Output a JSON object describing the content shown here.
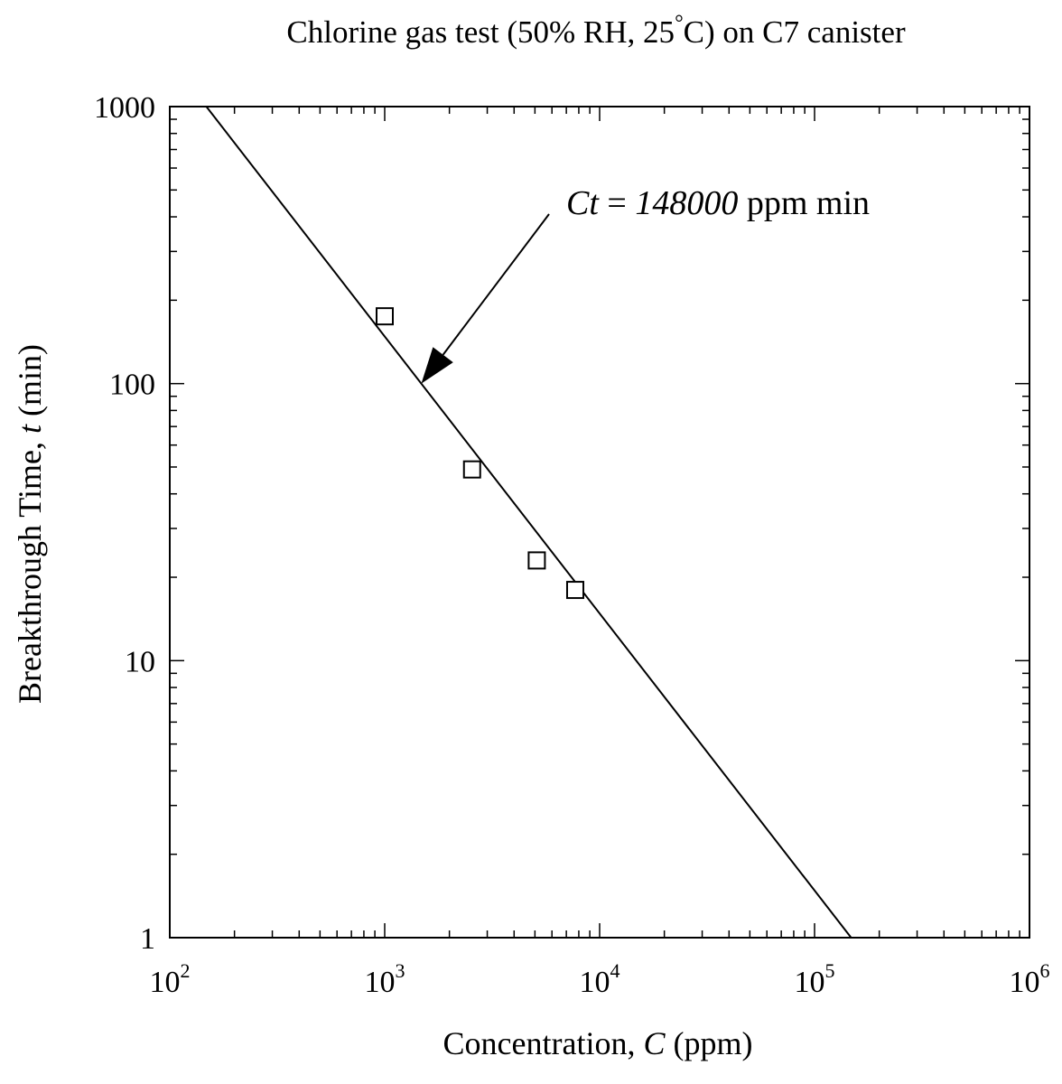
{
  "chart_data": {
    "type": "scatter",
    "title_prefix": "Chlorine gas test (50% RH, 25",
    "title_degree": "°",
    "title_suffix": "C) on C7 canister",
    "xlabel_prefix": "Concentration, ",
    "xlabel_var": "C",
    "xlabel_suffix": " (ppm)",
    "ylabel_prefix": "Breakthrough Time, ",
    "ylabel_var": "t",
    "ylabel_suffix": " (min)",
    "x_scale": "log",
    "y_scale": "log",
    "xlim": [
      100,
      1000000
    ],
    "ylim": [
      1,
      1000
    ],
    "x_ticks": [
      {
        "value": 100,
        "base": "10",
        "exp": "2"
      },
      {
        "value": 1000,
        "base": "10",
        "exp": "3"
      },
      {
        "value": 10000,
        "base": "10",
        "exp": "4"
      },
      {
        "value": 100000,
        "base": "10",
        "exp": "5"
      },
      {
        "value": 1000000,
        "base": "10",
        "exp": "6"
      }
    ],
    "y_ticks": [
      {
        "value": 1,
        "label": "1"
      },
      {
        "value": 10,
        "label": "10"
      },
      {
        "value": 100,
        "label": "100"
      },
      {
        "value": 1000,
        "label": "1000"
      }
    ],
    "grid": false,
    "points": [
      {
        "x": 1000,
        "y": 175
      },
      {
        "x": 2550,
        "y": 49
      },
      {
        "x": 5100,
        "y": 23
      },
      {
        "x": 7700,
        "y": 18
      }
    ],
    "fit_line": {
      "Ct": 148000,
      "x_range": [
        148,
        148000
      ]
    },
    "annotation": {
      "var": "Ct",
      "eq": " = ",
      "value": "148000",
      "unit": " ppm min",
      "arrow_target": {
        "x": 1480,
        "y": 100
      }
    }
  }
}
